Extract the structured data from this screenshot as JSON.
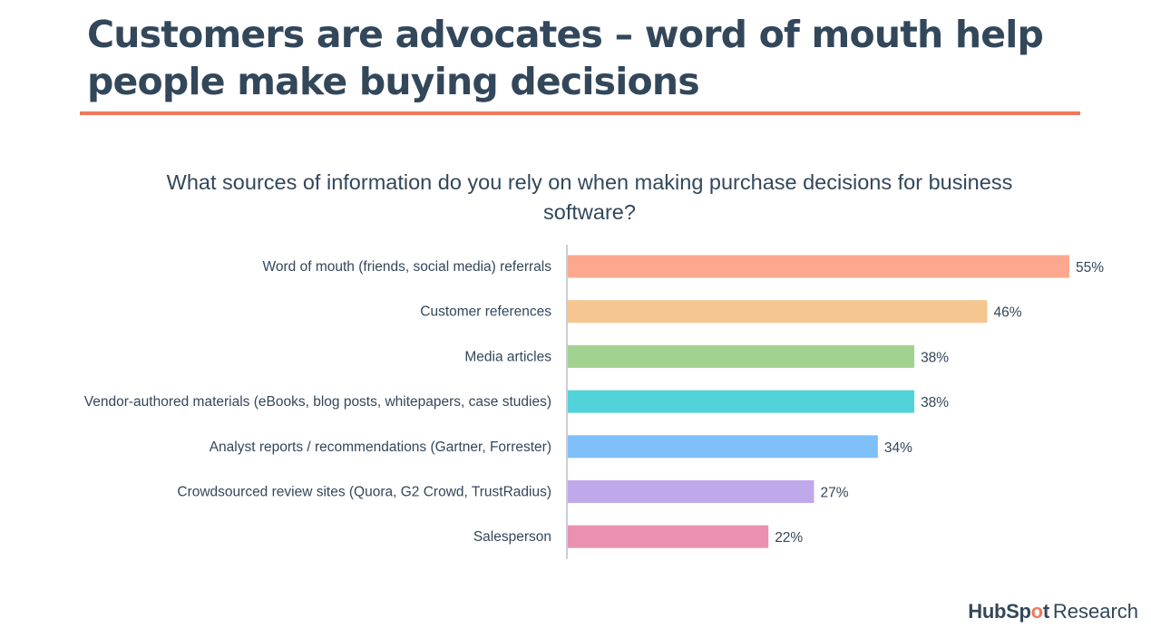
{
  "slide": {
    "title": "Customers are advocates – word of mouth help people make buying decisions"
  },
  "logo": {
    "brand_prefix": "HubSp",
    "brand_o": "o",
    "brand_suffix": "t",
    "suffix": "Research",
    "accent_color": "#f2775b"
  },
  "chart_data": {
    "type": "bar",
    "orientation": "horizontal",
    "title": "What sources of information do you rely on when making purchase decisions for business software?",
    "categories": [
      "Word of mouth (friends, social media) referrals",
      "Customer references",
      "Media articles",
      "Vendor-authored materials (eBooks, blog posts, whitepapers, case studies)",
      "Analyst reports / recommendations (Gartner, Forrester)",
      "Crowdsourced review sites (Quora, G2 Crowd, TrustRadius)",
      "Salesperson"
    ],
    "values": [
      55,
      46,
      38,
      38,
      34,
      27,
      22
    ],
    "value_labels": [
      "55%",
      "46%",
      "38%",
      "38%",
      "34%",
      "27%",
      "22%"
    ],
    "colors": [
      "#fca88e",
      "#f5c68f",
      "#a2d28f",
      "#51d3d9",
      "#7fc0f9",
      "#bfa9ea",
      "#ea90b1"
    ],
    "xlim": [
      0,
      55
    ],
    "grid": false,
    "legend": "none"
  }
}
